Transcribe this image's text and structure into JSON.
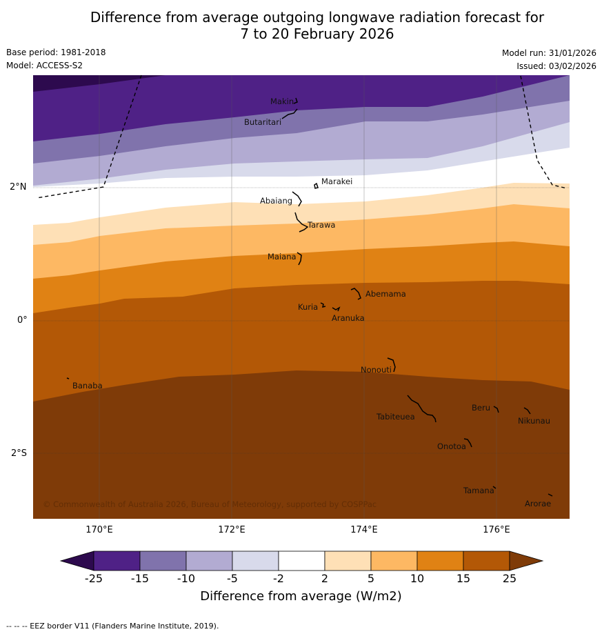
{
  "title": {
    "line1": "Difference from average outgoing longwave radiation forecast for",
    "line2": "7 to 20 February 2026"
  },
  "meta": {
    "base_period": "Base period: 1981-2018",
    "model": "Model: ACCESS-S2",
    "model_run": "Model run: 31/01/2026",
    "issued": "Issued: 03/02/2026"
  },
  "map": {
    "latitude_labels": [
      "2°N",
      "0°",
      "2°S"
    ],
    "longitude_labels": [
      "170°E",
      "172°E",
      "174°E",
      "176°E"
    ],
    "places": [
      "Makin",
      "Butaritari",
      "Marakei",
      "Abaiang",
      "Tarawa",
      "Maiana",
      "Abemama",
      "Kuria",
      "Aranuka",
      "Nonouti",
      "Banaba",
      "Beru",
      "Tabiteuea",
      "Nikunau",
      "Onotoa",
      "Tamana",
      "Arorae"
    ],
    "copyright": "© Commonwealth of Australia 2026, Bureau of Meteorology, supported by COSPPac"
  },
  "legend": {
    "ticks": [
      "-25",
      "-15",
      "-10",
      "-5",
      "-2",
      "2",
      "5",
      "10",
      "15",
      "25"
    ],
    "colors": [
      "#2d0a4e",
      "#4f2186",
      "#8073ac",
      "#b2abd2",
      "#d8daeb",
      "#ffffff",
      "#fee0b6",
      "#fdb863",
      "#e08214",
      "#b35806",
      "#7f3b08"
    ],
    "caption": "Difference from average (W/m2)"
  },
  "footnote": "-- -- -- EEZ border V11 (Flanders Marine Institute, 2019)."
}
